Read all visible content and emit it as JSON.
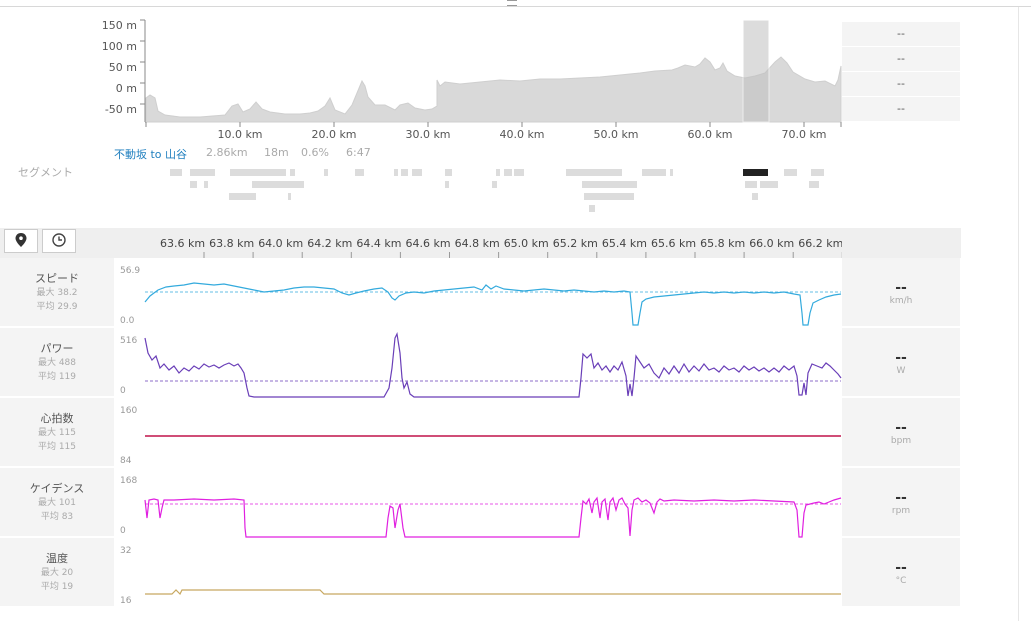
{
  "elevation": {
    "y_ticks": [
      "150 m",
      "100 m",
      "50 m",
      "0 m",
      "-50 m"
    ],
    "x_ticks": [
      "10.0 km",
      "20.0 km",
      "30.0 km",
      "40.0 km",
      "50.0 km",
      "60.0 km",
      "70.0 km"
    ],
    "stats": [
      "--",
      "--",
      "--",
      "--"
    ]
  },
  "segment": {
    "section_label": "セグメント",
    "name": "不動坂 to 山谷",
    "distance": "2.86km",
    "elevation_gain": "18m",
    "grade": "0.6%",
    "time": "6:47"
  },
  "toolbar": {
    "buttons": [
      {
        "icon": "map-pin-icon"
      },
      {
        "icon": "clock-icon"
      }
    ],
    "x_ticks": [
      "63.6 km",
      "63.8 km",
      "64.0 km",
      "64.2 km",
      "64.4 km",
      "64.6 km",
      "64.8 km",
      "65.0 km",
      "65.2 km",
      "65.4 km",
      "65.6 km",
      "65.8 km",
      "66.0 km",
      "66.2 km"
    ]
  },
  "metrics": [
    {
      "name": "スピード",
      "max": "最大 38.2",
      "avg": "平均 29.9",
      "ymax": "56.9",
      "ymin": "0.0",
      "value": "--",
      "unit": "km/h",
      "color": "#33aadd"
    },
    {
      "name": "パワー",
      "max": "最大 488",
      "avg": "平均 119",
      "ymax": "516",
      "ymin": "0",
      "value": "--",
      "unit": "W",
      "color": "#6a3fb8"
    },
    {
      "name": "心拍数",
      "max": "最大 115",
      "avg": "平均 115",
      "ymax": "160",
      "ymin": "84",
      "value": "--",
      "unit": "bpm",
      "color": "#c0144a"
    },
    {
      "name": "ケイデンス",
      "max": "最大 101",
      "avg": "平均 83",
      "ymax": "168",
      "ymin": "0",
      "value": "--",
      "unit": "rpm",
      "color": "#e020e0"
    },
    {
      "name": "温度",
      "max": "最大 20",
      "avg": "平均 19",
      "ymax": "32",
      "ymin": "16",
      "value": "--",
      "unit": "°C",
      "color": "#c8a860"
    }
  ]
}
